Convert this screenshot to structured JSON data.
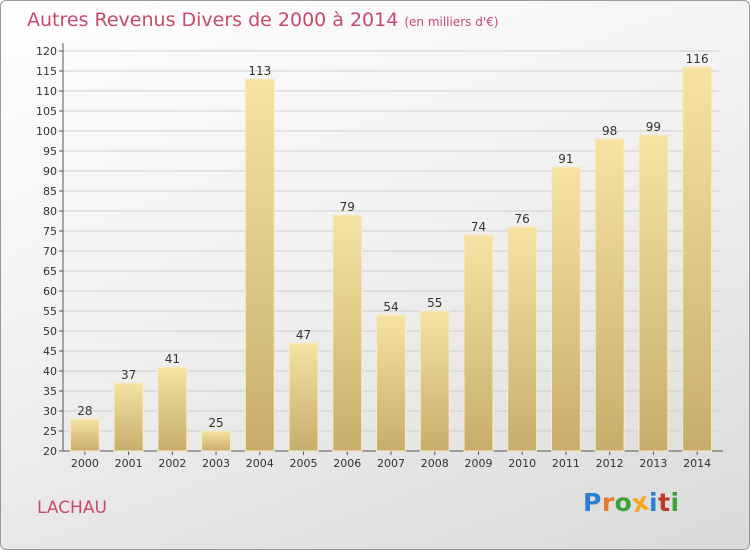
{
  "title": "Autres Revenus Divers de 2000 à 2014",
  "unit_note": "(en milliers d'€)",
  "location": "LACHAU",
  "brand": {
    "letters": [
      "P",
      "r",
      "o",
      "x",
      "i",
      "t",
      "i"
    ],
    "colors": [
      "#2a7fd0",
      "#e9792b",
      "#3aa33a",
      "#f2a81d",
      "#2a7fd0",
      "#c0392b",
      "#3aa33a"
    ]
  },
  "colors": {
    "bar_light": "#f6e3a2",
    "bar_dark": "#c7ad6a",
    "title": "#c8496b"
  },
  "chart_data": {
    "type": "bar",
    "categories": [
      "2000",
      "2001",
      "2002",
      "2003",
      "2004",
      "2005",
      "2006",
      "2007",
      "2008",
      "2009",
      "2010",
      "2011",
      "2012",
      "2013",
      "2014"
    ],
    "values": [
      28,
      37,
      41,
      25,
      113,
      47,
      79,
      54,
      55,
      74,
      76,
      91,
      98,
      99,
      116
    ],
    "ylim": [
      20,
      120
    ],
    "yticks": [
      20,
      25,
      30,
      35,
      40,
      45,
      50,
      55,
      60,
      65,
      70,
      75,
      80,
      85,
      90,
      95,
      100,
      105,
      110,
      115,
      120
    ],
    "grid": true
  }
}
